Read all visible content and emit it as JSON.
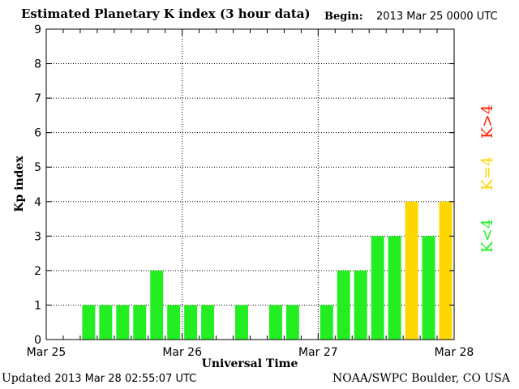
{
  "header": {
    "title": "Estimated Planetary K index (3 hour data)",
    "begin_label": "Begin:",
    "begin_value": "2013 Mar 25 0000 UTC"
  },
  "footer": {
    "updated_label": "Updated",
    "updated_value": "2013 Mar 28 02:55:07 UTC",
    "credit": "NOAA/SWPC Boulder, CO USA"
  },
  "legend": {
    "items": [
      {
        "label": "K<4",
        "color": "#22ee22"
      },
      {
        "label": "K=4",
        "color": "#ffd700"
      },
      {
        "label": "K>4",
        "color": "#ff2200"
      }
    ]
  },
  "chart_data": {
    "type": "bar",
    "title": "Estimated Planetary K index (3 hour data)",
    "xlabel": "Universal Time",
    "ylabel": "Kp index",
    "ylim": [
      0,
      9
    ],
    "yticks": [
      "0",
      "1",
      "2",
      "3",
      "4",
      "5",
      "6",
      "7",
      "8",
      "9"
    ],
    "xticks": [
      "Mar 25",
      "Mar 26",
      "Mar 27",
      "Mar 28"
    ],
    "grid": true,
    "bins_per_day": 8,
    "values": [
      0,
      0,
      1,
      1,
      1,
      1,
      2,
      1,
      1,
      1,
      0,
      1,
      0,
      1,
      1,
      0,
      1,
      2,
      2,
      3,
      3,
      4,
      3,
      4
    ],
    "colors": {
      "below": "#22ee22",
      "equal": "#ffd700",
      "above": "#ff2200"
    }
  }
}
